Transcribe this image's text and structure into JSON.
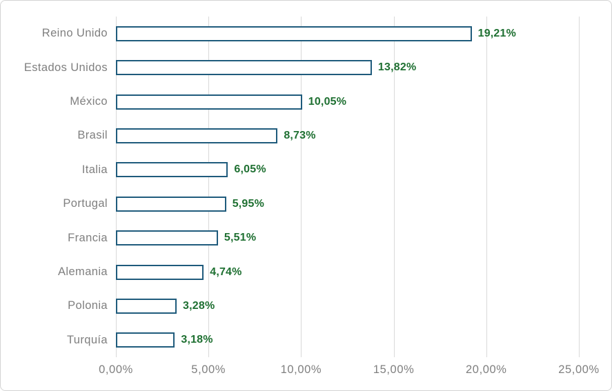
{
  "chart_data": {
    "type": "bar",
    "orientation": "horizontal",
    "title": "",
    "xlabel": "",
    "ylabel": "",
    "xlim": [
      0,
      25
    ],
    "grid": true,
    "legend": false,
    "categories": [
      "Reino Unido",
      "Estados Unidos",
      "México",
      "Brasil",
      "Italia",
      "Portugal",
      "Francia",
      "Alemania",
      "Polonia",
      "Turquía"
    ],
    "values": [
      19.21,
      13.82,
      10.05,
      8.73,
      6.05,
      5.95,
      5.51,
      4.74,
      3.28,
      3.18
    ],
    "value_labels": [
      "19,21%",
      "13,82%",
      "10,05%",
      "8,73%",
      "6,05%",
      "5,95%",
      "5,51%",
      "4,74%",
      "3,28%",
      "3,18%"
    ],
    "x_ticks": [
      {
        "value": 0,
        "label": "0,00%"
      },
      {
        "value": 5,
        "label": "5,00%"
      },
      {
        "value": 10,
        "label": "10,00%"
      },
      {
        "value": 15,
        "label": "15,00%"
      },
      {
        "value": 20,
        "label": "20,00%"
      },
      {
        "value": 25,
        "label": "25,00%"
      }
    ],
    "bar_style": "outlined-white-fill"
  },
  "colors": {
    "bar_border": "#1f5b7c",
    "bar_fill": "#ffffff",
    "value_label": "#1f7032",
    "axis_label": "#7f7f7f",
    "gridline": "#d9d9d9",
    "frame_border": "#d3d3d3",
    "background": "#ffffff"
  }
}
